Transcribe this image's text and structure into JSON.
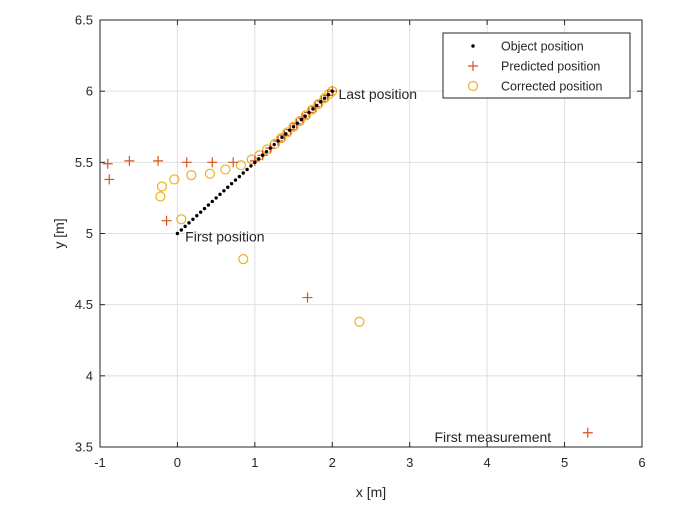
{
  "chart_data": {
    "type": "scatter",
    "xlabel": "x [m]",
    "ylabel": "y [m]",
    "xlim": [
      -1,
      6
    ],
    "ylim": [
      3.5,
      6.5
    ],
    "xticks": [
      -1,
      0,
      1,
      2,
      3,
      4,
      5,
      6
    ],
    "yticks": [
      3.5,
      4,
      4.5,
      5,
      5.5,
      6,
      6.5
    ],
    "xtick_labels": [
      "-1",
      "0",
      "1",
      "2",
      "3",
      "4",
      "5",
      "6"
    ],
    "ytick_labels": [
      "3.5",
      "4",
      "4.5",
      "5",
      "5.5",
      "6",
      "6.5"
    ],
    "grid": true,
    "legend_position": "top-right",
    "colors": {
      "object": "#000000",
      "predicted": "#D95319",
      "corrected": "#EDB120"
    },
    "series": [
      {
        "name": "Object position",
        "marker": "dot",
        "x": [
          0.0,
          0.05,
          0.1,
          0.15,
          0.2,
          0.25,
          0.3,
          0.35,
          0.4,
          0.45,
          0.5,
          0.55,
          0.6,
          0.65,
          0.7,
          0.75,
          0.8,
          0.85,
          0.9,
          0.95,
          1.0,
          1.05,
          1.1,
          1.15,
          1.2,
          1.25,
          1.3,
          1.35,
          1.4,
          1.45,
          1.5,
          1.55,
          1.6,
          1.65,
          1.7,
          1.75,
          1.8,
          1.85,
          1.9,
          1.95,
          2.0
        ],
        "y": [
          5.0,
          5.025,
          5.05,
          5.075,
          5.1,
          5.125,
          5.15,
          5.175,
          5.2,
          5.225,
          5.25,
          5.275,
          5.3,
          5.325,
          5.35,
          5.375,
          5.4,
          5.425,
          5.45,
          5.475,
          5.5,
          5.525,
          5.55,
          5.575,
          5.6,
          5.625,
          5.65,
          5.675,
          5.7,
          5.725,
          5.75,
          5.775,
          5.8,
          5.825,
          5.85,
          5.875,
          5.9,
          5.925,
          5.95,
          5.975,
          6.0
        ]
      },
      {
        "name": "Predicted position",
        "marker": "plus",
        "x": [
          5.3,
          1.68,
          -0.14,
          -0.88,
          -0.9,
          -0.62,
          -0.25,
          0.12,
          0.45,
          0.72,
          1.0,
          1.1,
          1.2,
          1.3,
          1.38,
          1.46,
          1.54,
          1.62,
          1.7,
          1.78,
          1.86,
          1.94,
          2.0
        ],
        "y": [
          3.6,
          4.55,
          5.09,
          5.38,
          5.49,
          5.51,
          5.51,
          5.5,
          5.5,
          5.5,
          5.51,
          5.55,
          5.6,
          5.65,
          5.69,
          5.73,
          5.77,
          5.81,
          5.85,
          5.89,
          5.93,
          5.97,
          6.0
        ]
      },
      {
        "name": "Corrected position",
        "marker": "circle",
        "x": [
          2.35,
          0.85,
          0.05,
          -0.22,
          -0.2,
          -0.04,
          0.18,
          0.42,
          0.62,
          0.82,
          0.96,
          1.06,
          1.16,
          1.26,
          1.34,
          1.42,
          1.5,
          1.58,
          1.66,
          1.74,
          1.82,
          1.9,
          1.96,
          2.0
        ],
        "y": [
          4.38,
          4.82,
          5.1,
          5.26,
          5.33,
          5.38,
          5.41,
          5.42,
          5.45,
          5.48,
          5.52,
          5.55,
          5.59,
          5.63,
          5.67,
          5.71,
          5.75,
          5.79,
          5.83,
          5.87,
          5.91,
          5.95,
          5.98,
          6.0
        ]
      }
    ],
    "annotations": [
      {
        "text": "First position",
        "x": 0.1,
        "y": 4.98
      },
      {
        "text": "Last position",
        "x": 2.08,
        "y": 5.98
      },
      {
        "text": "First measurement",
        "x": 3.32,
        "y": 3.57
      }
    ]
  }
}
